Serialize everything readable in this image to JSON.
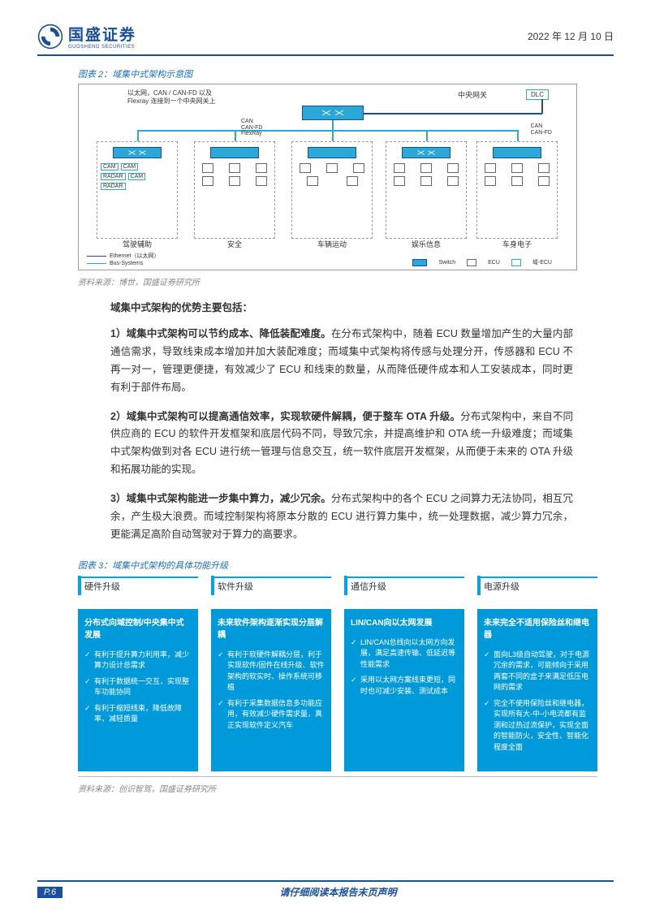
{
  "header": {
    "company_cn": "国盛证券",
    "company_en": "GUOSHENG SECURITIES",
    "date": "2022 年 12 月 10 日",
    "logo_color": "#1a4f9e"
  },
  "fig2": {
    "title": "图表 2：域集中式架构示意图",
    "top_note": "以太网，CAN / CAN-FD 以及 Flexray 连接到一个中央网关上",
    "gateway_label": "中央网关",
    "dlc": "DLC",
    "can_lines1": "CAN\nCAN-FD\nFlexRay",
    "can_lines2": "CAN\nCAN-FD",
    "domains": [
      "驾驶辅助",
      "安全",
      "车辆运动",
      "娱乐信息",
      "车身电子"
    ],
    "adas_labels": {
      "cam": "CAM",
      "radar": "RADAR"
    },
    "legend_eth": "Ethernet（以太网）",
    "legend_bus": "Bus-Systems",
    "legend_switch": "Switch",
    "legend_ecu": "ECU",
    "legend_decu": "域-ECU",
    "source": "资料来源：博世，国盛证券研究所"
  },
  "body": {
    "intro": "域集中式架构的优势主要包括：",
    "p1_lead": "1）域集中式架构可以节约成本、降低装配难度。",
    "p1_rest": "在分布式架构中，随着 ECU 数量增加产生的大量内部通信需求，导致线束成本增加并加大装配难度；而域集中式架构将传感与处理分开，传感器和 ECU 不再一对一，管理更便捷，有效减少了 ECU 和线束的数量，从而降低硬件成本和人工安装成本，同时更有利于部件布局。",
    "p2_lead": "2）域集中式架构可以提高通信效率，实现软硬件解耦，便于整车 OTA 升级。",
    "p2_rest": "分布式架构中，来自不同供应商的 ECU 的软件开发框架和底层代码不同，导致冗余，并提高维护和 OTA 统一升级难度；而域集中式架构做到对各 ECU 进行统一管理与信息交互，统一软件底层开发框架，从而便于未来的 OTA 升级和拓展功能的实现。",
    "p3_lead": "3）域集中式架构能进一步集中算力，减少冗余。",
    "p3_rest": "分布式架构中的各个 ECU 之间算力无法协同，相互冗余，产生极大浪费。而域控制架构将原本分散的 ECU 进行算力集中，统一处理数据，减少算力冗余，更能满足高阶自动驾驶对于算力的高要求。"
  },
  "fig3": {
    "title": "图表 3：域集中式架构的具体功能升级",
    "accent_color": "#00a5e3",
    "card_bg": "#0099d9",
    "columns": [
      {
        "tab": "硬件升级",
        "head": "分布式向域控制/中央集中式发展",
        "items": [
          "有利于提升算力利用率，减少算力设计总需求",
          "有利于数据统一交互，实现整车功能协同",
          "有利于缩短线束，降低故障率，减轻质量"
        ]
      },
      {
        "tab": "软件升级",
        "head": "未来软件架构逐渐实现分层解耦",
        "items": [
          "有利于软硬件解耦分层，利于实现软件/固件在线升级、软件架构的软实时、操作系统可移植",
          "有利于采集数据信息多功能应用，有效减少硬件需求量，真正实现软件定义汽车"
        ]
      },
      {
        "tab": "通信升级",
        "head": "LIN/CAN向以太网发展",
        "items": [
          "LIN/CAN总线向以太网方向发展，满足高速传输、低延迟等性能需求",
          "采用以太网方案线束更短，同时也可减少安装、测试成本"
        ]
      },
      {
        "tab": "电源升级",
        "head": "未来完全不适用保险丝和继电器",
        "items": [
          "面向L3级自动驾驶，对于电源冗余的需求，可能倾向于采用两套不同的盒子来满足低压电网的需求",
          "完全不使用保险丝和继电器，实现所有大-中-小电流都有监测和过热过流保护，实现全面的智能防火，安全性、智能化程度全面"
        ]
      }
    ],
    "source": "资料来源：创识智驾，国盛证券研究所"
  },
  "footer": {
    "page": "P.6",
    "note": "请仔细阅读本报告末页声明"
  }
}
